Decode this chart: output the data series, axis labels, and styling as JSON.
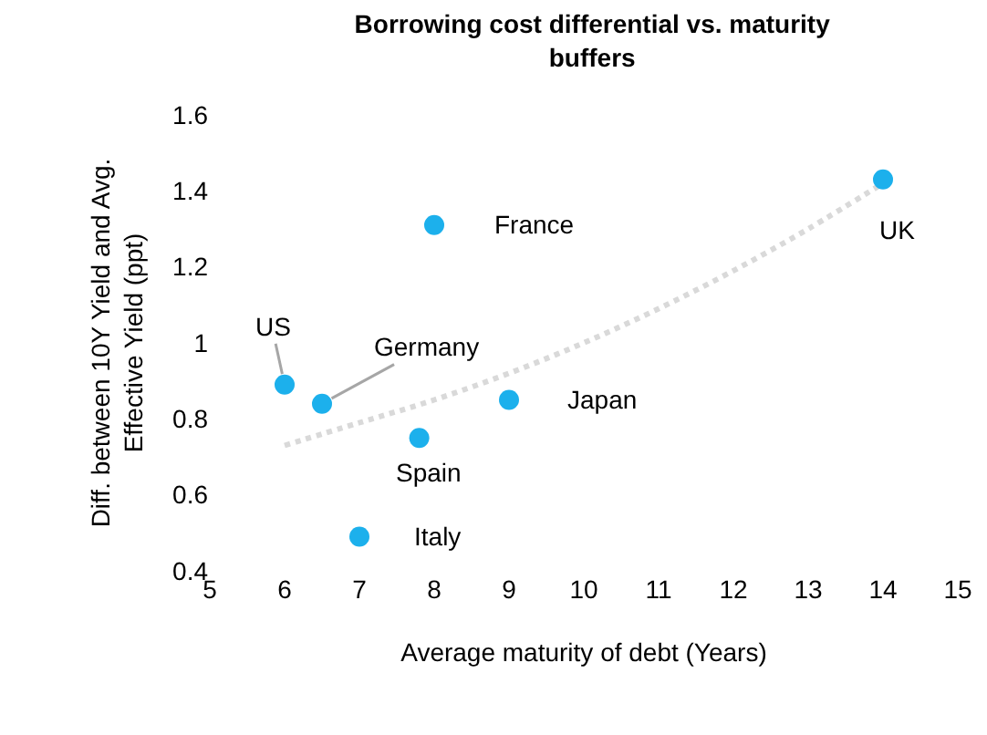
{
  "chart_data": {
    "type": "scatter",
    "title": "Borrowing cost differential vs. maturity buffers",
    "xlabel": "Average maturity of debt (Years)",
    "ylabel": "Diff. between 10Y Yield and Avg. Effective Yield (ppt)",
    "xlim": [
      5,
      15
    ],
    "xticks": [
      5,
      6,
      7,
      8,
      9,
      10,
      11,
      12,
      13,
      14,
      15
    ],
    "ylim": [
      0.4,
      1.6
    ],
    "yticks": [
      0.4,
      0.6,
      0.8,
      1.0,
      1.2,
      1.4,
      1.6
    ],
    "series": [
      {
        "color": "#1cb0ec",
        "marker": "circle",
        "x": [
          6,
          6.5,
          7.8,
          7,
          8,
          9,
          14
        ],
        "values": [
          0.89,
          0.84,
          0.75,
          0.49,
          1.31,
          0.85,
          1.43
        ]
      },
      {
        "type": "line",
        "color": "#d9d9d9",
        "line_style": "dotted",
        "marker": "none",
        "x": [
          6,
          7,
          8,
          9,
          10,
          11,
          12,
          13,
          14
        ],
        "values": [
          0.73,
          0.79,
          0.85,
          0.92,
          1.0,
          1.09,
          1.19,
          1.3,
          1.42
        ]
      }
    ],
    "annotations": [
      {
        "text": "US",
        "x": 6,
        "y": 0.89
      },
      {
        "text": "Germany",
        "x": 6.5,
        "y": 0.84
      },
      {
        "text": "Spain",
        "x": 7.8,
        "y": 0.75
      },
      {
        "text": "Italy",
        "x": 7,
        "y": 0.49
      },
      {
        "text": "France",
        "x": 8,
        "y": 1.31
      },
      {
        "text": "Japan",
        "x": 9,
        "y": 0.85
      },
      {
        "text": "UK",
        "x": 14,
        "y": 1.43
      }
    ]
  }
}
